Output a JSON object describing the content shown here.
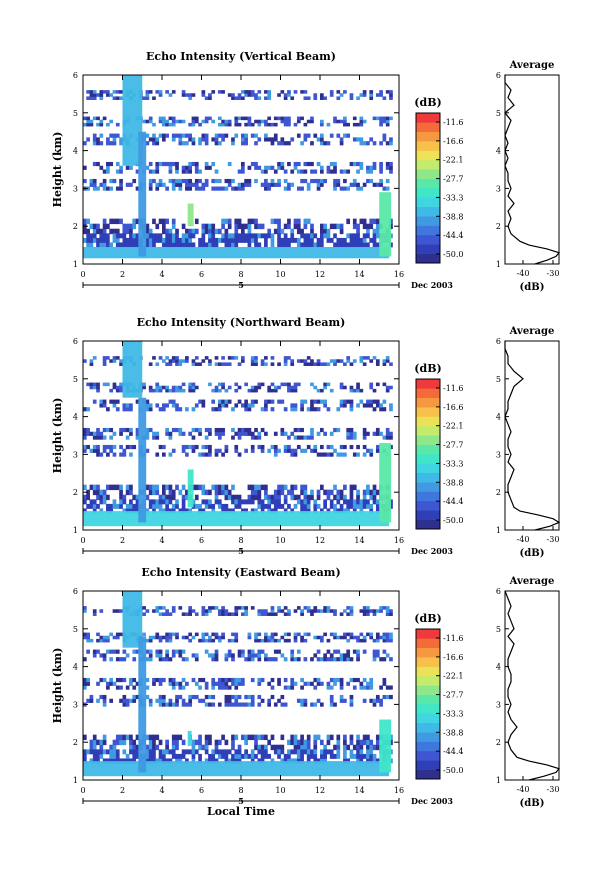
{
  "figure": {
    "colorbar_unit": "(dB)",
    "colorbar_ticks": [
      "-11.6",
      "-16.6",
      "-22.1",
      "-27.7",
      "-33.3",
      "-38.8",
      "-44.4",
      "-50.0"
    ],
    "colorbar_colors": [
      "#2f2f8f",
      "#2f3fb8",
      "#3f56d2",
      "#3f77de",
      "#3f9ae2",
      "#3fb9e6",
      "#3fd6e2",
      "#3fe6c8",
      "#5ae8a8",
      "#8ee88a",
      "#c4ec6c",
      "#ece25a",
      "#f6c04a",
      "#f6983f",
      "#f56a3a",
      "#ee3a3a"
    ],
    "xlabel": "Local Time",
    "day_label": "5",
    "date_label": "Dec 2003",
    "avg_title": "Average",
    "avg_xlabel": "(dB)"
  },
  "chart_data": [
    {
      "type": "heatmap",
      "title": "Echo Intensity (Vertical Beam)",
      "ylabel": "Height (km)",
      "xlabel": "",
      "xlim": [
        0,
        16
      ],
      "ylim": [
        1,
        6
      ],
      "xticks": [
        "0",
        "2",
        "4",
        "6",
        "8",
        "10",
        "12",
        "14",
        "16"
      ],
      "yticks": [
        "1",
        "2",
        "3",
        "4",
        "5",
        "6"
      ],
      "value_range_dB": [
        -50.0,
        -11.6
      ],
      "features": [
        {
          "hours": [
            0,
            15.5
          ],
          "height_km": [
            1.15,
            1.45
          ],
          "level_dB": -38
        },
        {
          "hours": [
            2.0,
            3.0
          ],
          "height_km": [
            3.6,
            6.0
          ],
          "level_dB": -36
        },
        {
          "hours": [
            2.8,
            3.2
          ],
          "height_km": [
            1.2,
            4.5
          ],
          "level_dB": -40
        },
        {
          "hours": [
            15.0,
            15.6
          ],
          "height_km": [
            1.2,
            2.9
          ],
          "level_dB": -30
        },
        {
          "hours": [
            5.3,
            5.6
          ],
          "height_km": [
            2.0,
            2.6
          ],
          "level_dB": -28
        }
      ],
      "average_profile": {
        "xlim": [
          -46,
          -28
        ],
        "xticks": [
          "-40",
          "-30"
        ],
        "height_km": [
          1.0,
          1.1,
          1.2,
          1.3,
          1.4,
          1.5,
          1.6,
          1.8,
          2.0,
          2.2,
          2.4,
          2.6,
          2.8,
          3.0,
          3.2,
          3.4,
          3.6,
          3.8,
          4.0,
          4.2,
          4.4,
          4.6,
          4.8,
          5.0,
          5.2,
          5.4,
          5.6,
          5.8,
          6.0
        ],
        "value_dB": [
          -36,
          -32,
          -29,
          -28,
          -32,
          -38,
          -41,
          -44,
          -45,
          -44,
          -45,
          -43,
          -45,
          -44,
          -45,
          -45,
          -46,
          -45,
          -46,
          -45,
          -46,
          -45,
          -44,
          -46,
          -43,
          -45,
          -44,
          -46,
          -46
        ]
      }
    },
    {
      "type": "heatmap",
      "title": "Echo Intensity (Northward Beam)",
      "ylabel": "Height (km)",
      "xlabel": "",
      "xlim": [
        0,
        16
      ],
      "ylim": [
        1,
        6
      ],
      "xticks": [
        "0",
        "2",
        "4",
        "6",
        "8",
        "10",
        "12",
        "14",
        "16"
      ],
      "yticks": [
        "1",
        "2",
        "3",
        "4",
        "5",
        "6"
      ],
      "value_range_dB": [
        -50.0,
        -11.6
      ],
      "features": [
        {
          "hours": [
            0,
            15.5
          ],
          "height_km": [
            1.1,
            1.5
          ],
          "level_dB": -35
        },
        {
          "hours": [
            2.0,
            3.0
          ],
          "height_km": [
            4.5,
            6.0
          ],
          "level_dB": -36
        },
        {
          "hours": [
            2.8,
            3.2
          ],
          "height_km": [
            1.2,
            4.5
          ],
          "level_dB": -40
        },
        {
          "hours": [
            15.0,
            15.6
          ],
          "height_km": [
            1.2,
            3.3
          ],
          "level_dB": -30
        },
        {
          "hours": [
            5.3,
            5.6
          ],
          "height_km": [
            1.6,
            2.6
          ],
          "level_dB": -32
        }
      ],
      "average_profile": {
        "xlim": [
          -46,
          -28
        ],
        "xticks": [
          "-40",
          "-30"
        ],
        "height_km": [
          1.0,
          1.1,
          1.2,
          1.3,
          1.4,
          1.5,
          1.6,
          1.8,
          2.0,
          2.2,
          2.4,
          2.6,
          2.8,
          3.0,
          3.2,
          3.4,
          3.6,
          3.8,
          4.0,
          4.2,
          4.4,
          4.6,
          4.8,
          5.0,
          5.2,
          5.4,
          5.6,
          5.8,
          6.0
        ],
        "value_dB": [
          -36,
          -31,
          -28,
          -30,
          -35,
          -41,
          -43,
          -44,
          -45,
          -45,
          -44,
          -43,
          -45,
          -44,
          -45,
          -45,
          -44,
          -45,
          -46,
          -45,
          -45,
          -44,
          -43,
          -40,
          -43,
          -45,
          -45,
          -46,
          -46
        ]
      }
    },
    {
      "type": "heatmap",
      "title": "Echo Intensity (Eastward Beam)",
      "ylabel": "Height (km)",
      "xlabel": "Local Time",
      "xlim": [
        0,
        16
      ],
      "ylim": [
        1,
        6
      ],
      "xticks": [
        "0",
        "2",
        "4",
        "6",
        "8",
        "10",
        "12",
        "14",
        "16"
      ],
      "yticks": [
        "1",
        "2",
        "3",
        "4",
        "5",
        "6"
      ],
      "value_range_dB": [
        -50.0,
        -11.6
      ],
      "features": [
        {
          "hours": [
            0,
            15.5
          ],
          "height_km": [
            1.1,
            1.5
          ],
          "level_dB": -36
        },
        {
          "hours": [
            2.0,
            3.0
          ],
          "height_km": [
            4.5,
            6.0
          ],
          "level_dB": -36
        },
        {
          "hours": [
            2.8,
            3.2
          ],
          "height_km": [
            1.2,
            4.8
          ],
          "level_dB": -40
        },
        {
          "hours": [
            15.0,
            15.6
          ],
          "height_km": [
            1.2,
            2.6
          ],
          "level_dB": -32
        },
        {
          "hours": [
            5.3,
            5.5
          ],
          "height_km": [
            1.9,
            2.3
          ],
          "level_dB": -34
        }
      ],
      "average_profile": {
        "xlim": [
          -46,
          -28
        ],
        "xticks": [
          "-40",
          "-30"
        ],
        "height_km": [
          1.0,
          1.1,
          1.2,
          1.3,
          1.4,
          1.5,
          1.6,
          1.8,
          2.0,
          2.2,
          2.4,
          2.6,
          2.8,
          3.0,
          3.2,
          3.4,
          3.6,
          3.8,
          4.0,
          4.2,
          4.4,
          4.6,
          4.8,
          5.0,
          5.2,
          5.4,
          5.6,
          5.8,
          6.0
        ],
        "value_dB": [
          -38,
          -33,
          -29,
          -28,
          -32,
          -38,
          -42,
          -44,
          -45,
          -44,
          -42,
          -44,
          -45,
          -44,
          -45,
          -45,
          -44,
          -44,
          -45,
          -45,
          -44,
          -43,
          -45,
          -43,
          -44,
          -45,
          -44,
          -45,
          -46
        ]
      }
    }
  ]
}
